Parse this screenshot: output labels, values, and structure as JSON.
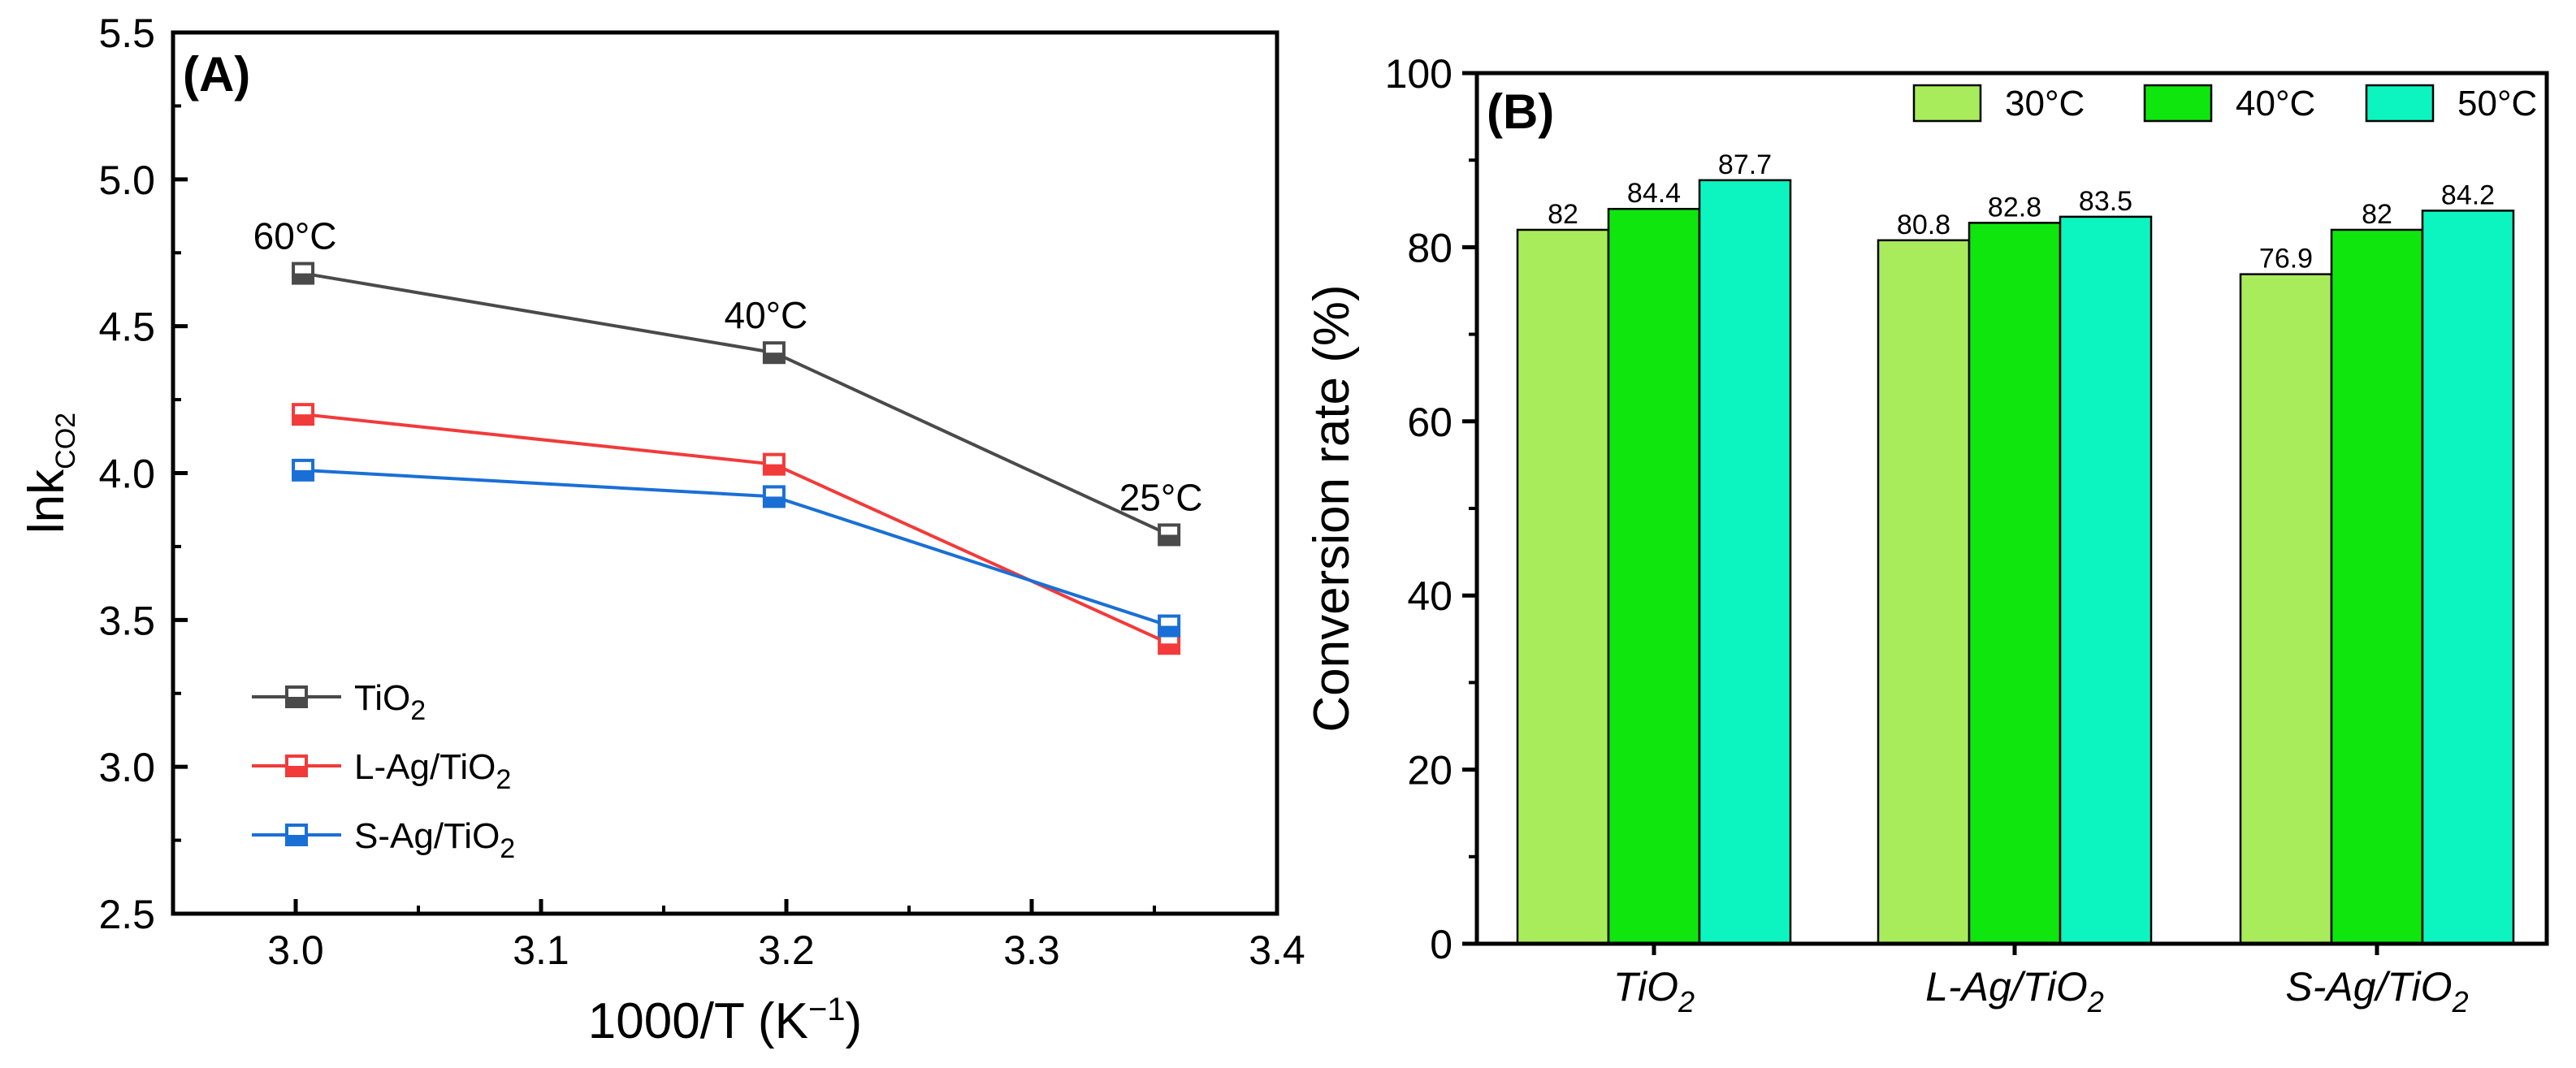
{
  "chart_data": [
    {
      "type": "line",
      "panel_label": "(A)",
      "xlabel": "1000/T (K",
      "xlabel_sup": "−1",
      "xlabel_end": ")",
      "ylabel": "lnk",
      "ylabel_sub": "CO2",
      "xlim": [
        2.95,
        3.4
      ],
      "ylim": [
        2.5,
        5.5
      ],
      "xticks": [
        "3.0",
        "3.1",
        "3.2",
        "3.3",
        "3.4"
      ],
      "yticks": [
        "2.5",
        "3.0",
        "3.5",
        "4.0",
        "4.5",
        "5.0",
        "5.5"
      ],
      "x": [
        3.003,
        3.195,
        3.356
      ],
      "series": [
        {
          "name": "TiO",
          "name_sub": "2",
          "color": "#4a4a4a",
          "values": [
            4.68,
            4.41,
            3.79
          ]
        },
        {
          "name": "L-Ag/TiO",
          "name_sub": "2",
          "color": "#f23a3a",
          "values": [
            4.2,
            4.03,
            3.42
          ]
        },
        {
          "name": "S-Ag/TiO",
          "name_sub": "2",
          "color": "#1a6fd6",
          "values": [
            4.01,
            3.92,
            3.48
          ]
        }
      ],
      "annotations": [
        "60°C",
        "40°C",
        "25°C"
      ],
      "legend_position": "bottom-left"
    },
    {
      "type": "bar",
      "panel_label": "(B)",
      "ylabel": "Conversion rate (%)",
      "ylim": [
        0,
        100
      ],
      "yticks": [
        "0",
        "20",
        "40",
        "60",
        "80",
        "100"
      ],
      "categories": [
        {
          "name": "TiO",
          "sub": "2"
        },
        {
          "name": "L-Ag/TiO",
          "sub": "2"
        },
        {
          "name": "S-Ag/TiO",
          "sub": "2"
        }
      ],
      "series": [
        {
          "name": "30°C",
          "color": "#a8ec5c",
          "values": [
            82,
            80.8,
            76.9
          ],
          "labels": [
            "82",
            "80.8",
            "76.9"
          ]
        },
        {
          "name": "40°C",
          "color": "#0ee60e",
          "values": [
            84.4,
            82.8,
            82
          ],
          "labels": [
            "84.4",
            "82.8",
            "82"
          ]
        },
        {
          "name": "50°C",
          "color": "#0cf5c0",
          "values": [
            87.7,
            83.5,
            84.2
          ],
          "labels": [
            "87.7",
            "83.5",
            "84.2"
          ]
        }
      ],
      "legend_position": "top"
    }
  ]
}
